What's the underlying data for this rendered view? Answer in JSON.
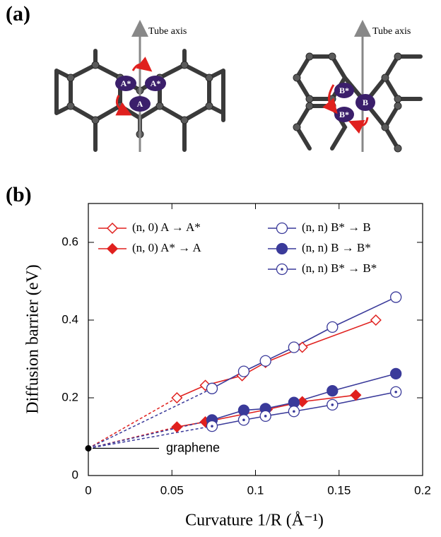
{
  "panel_a": {
    "label": "(a)",
    "left": {
      "axis_label": "Tube axis",
      "atoms": [
        "A*",
        "A*",
        "A"
      ]
    },
    "right": {
      "axis_label": "Tube axis",
      "atoms": [
        "B*",
        "B*",
        "B"
      ]
    }
  },
  "chart_data": {
    "type": "line",
    "panel_label": "(b)",
    "x_label": "Curvature 1/R (Å⁻¹)",
    "y_label": "Diffusion barrier (eV)",
    "xlim": [
      0,
      0.2
    ],
    "ylim": [
      0,
      0.7
    ],
    "xticks": [
      0,
      0.05,
      0.1,
      0.15,
      0.2
    ],
    "yticks": [
      0,
      0.2,
      0.4,
      0.6
    ],
    "legend": "upper left",
    "reference": {
      "name": "graphene",
      "x": 0,
      "y": 0.07
    },
    "series": [
      {
        "name": "(n, 0) A → A*",
        "color": "#e0201e",
        "marker": "diamond-open",
        "x": [
          0.053,
          0.07,
          0.092,
          0.106,
          0.128,
          0.172
        ],
        "values": [
          0.2,
          0.232,
          0.257,
          0.291,
          0.33,
          0.4
        ]
      },
      {
        "name": "(n, 0) A* → A",
        "color": "#e0201e",
        "marker": "diamond-filled",
        "x": [
          0.053,
          0.07,
          0.107,
          0.128,
          0.16
        ],
        "values": [
          0.125,
          0.138,
          0.17,
          0.19,
          0.207
        ]
      },
      {
        "name": "(n, n) B* → B",
        "color": "#3a3a9a",
        "marker": "circle-open",
        "x": [
          0.074,
          0.093,
          0.106,
          0.123,
          0.146,
          0.184
        ],
        "values": [
          0.224,
          0.268,
          0.295,
          0.33,
          0.382,
          0.459
        ]
      },
      {
        "name": "(n, n) B → B*",
        "color": "#3a3a9a",
        "marker": "circle-filled",
        "x": [
          0.074,
          0.093,
          0.106,
          0.123,
          0.146,
          0.184
        ],
        "values": [
          0.143,
          0.168,
          0.172,
          0.188,
          0.218,
          0.262
        ]
      },
      {
        "name": "(n, n) B* → B*",
        "color": "#3a3a9a",
        "marker": "circle-dot",
        "x": [
          0.074,
          0.093,
          0.106,
          0.123,
          0.146,
          0.184
        ],
        "values": [
          0.127,
          0.143,
          0.153,
          0.165,
          0.182,
          0.215
        ]
      }
    ]
  }
}
